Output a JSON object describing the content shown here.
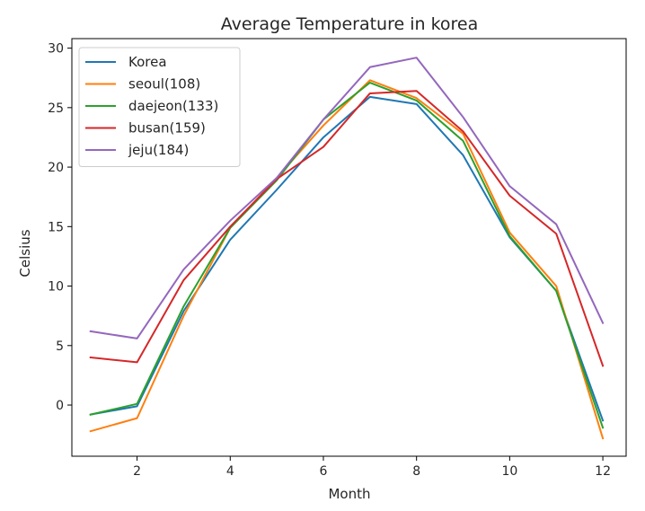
{
  "chart_data": {
    "type": "line",
    "title": "Average Temperature in korea",
    "xlabel": "Month",
    "ylabel": "Celsius",
    "xlim": [
      0.6,
      12.5
    ],
    "ylim": [
      -4.3,
      30.8
    ],
    "xticks": [
      2,
      4,
      6,
      8,
      10,
      12
    ],
    "yticks": [
      0,
      5,
      10,
      15,
      20,
      25,
      30
    ],
    "legend_position": "top-left",
    "x": [
      1,
      2,
      3,
      4,
      5,
      6,
      7,
      8,
      9,
      10,
      11,
      12
    ],
    "series": [
      {
        "name": "Korea",
        "color": "#1f77b4",
        "values": [
          -0.8,
          -0.1,
          7.9,
          13.9,
          18.1,
          22.5,
          25.9,
          25.3,
          21.0,
          14.1,
          9.6,
          -1.3
        ]
      },
      {
        "name": "seoul(108)",
        "color": "#ff7f0e",
        "values": [
          -2.2,
          -1.1,
          7.5,
          14.9,
          19.1,
          23.5,
          27.3,
          25.8,
          22.8,
          14.5,
          10.0,
          -2.8
        ]
      },
      {
        "name": "daejeon(133)",
        "color": "#2ca02c",
        "values": [
          -0.8,
          0.1,
          8.3,
          14.9,
          18.9,
          24.0,
          27.1,
          25.6,
          22.2,
          14.2,
          9.6,
          -1.9
        ]
      },
      {
        "name": "busan(159)",
        "color": "#d62728",
        "values": [
          4.0,
          3.6,
          10.5,
          15.0,
          19.0,
          21.7,
          26.2,
          26.4,
          23.0,
          17.6,
          14.4,
          3.3
        ]
      },
      {
        "name": "jeju(184)",
        "color": "#9467bd",
        "values": [
          6.2,
          5.6,
          11.4,
          15.5,
          19.1,
          24.0,
          28.4,
          29.2,
          24.2,
          18.4,
          15.2,
          6.9
        ]
      }
    ]
  }
}
